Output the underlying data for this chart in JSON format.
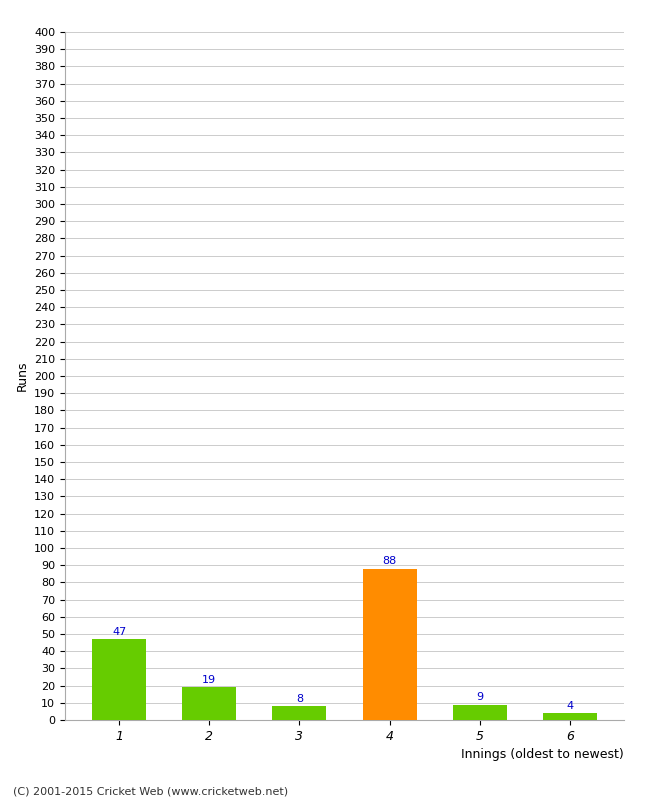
{
  "categories": [
    "1",
    "2",
    "3",
    "4",
    "5",
    "6"
  ],
  "values": [
    47,
    19,
    8,
    88,
    9,
    4
  ],
  "bar_colors": [
    "#66cc00",
    "#66cc00",
    "#66cc00",
    "#ff8c00",
    "#66cc00",
    "#66cc00"
  ],
  "ylabel": "Runs",
  "xlabel": "Innings (oldest to newest)",
  "ylim": [
    0,
    400
  ],
  "ytick_step": 10,
  "label_color": "#0000cc",
  "background_color": "#ffffff",
  "grid_color": "#cccccc",
  "footer": "(C) 2001-2015 Cricket Web (www.cricketweb.net)"
}
